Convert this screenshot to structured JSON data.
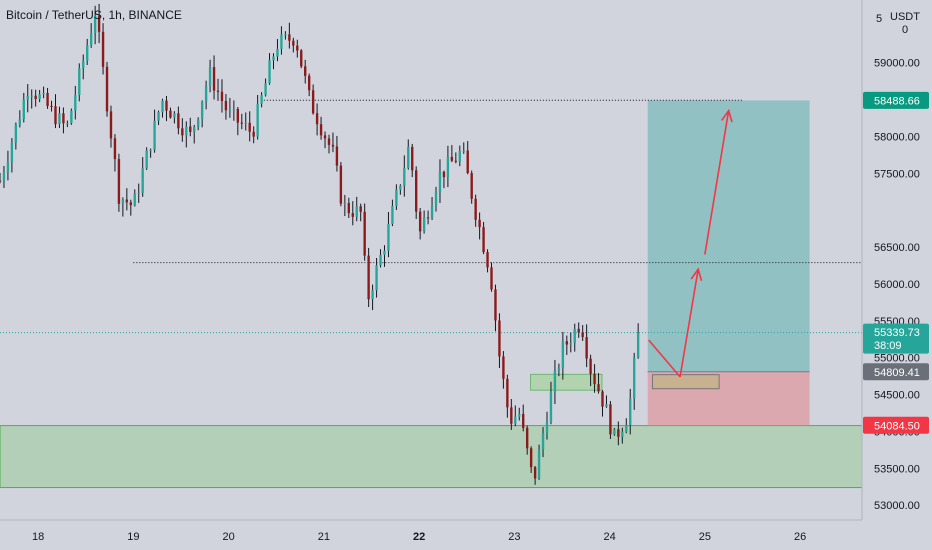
{
  "header": {
    "symbol": "Bitcoin / TetherUS",
    "interval": "1h",
    "exchange": "BINANCE",
    "sep": ", "
  },
  "axis": {
    "currency_label": "USDT",
    "currency_sub": "0",
    "top_partial": "5"
  },
  "colors": {
    "background": "#d1d4dc",
    "up_candle": "#26a69a",
    "down_candle": "#8b1a1a",
    "wick": "#131722",
    "target_zone": "#8ec0c2",
    "stop_zone": "#dba5ad",
    "demand_zone": "#b3cfb8",
    "demand_border": "#4caf50",
    "arrow": "#f23645",
    "current_price_tag": "#26a69a",
    "target_tag": "#089981",
    "entry_tag": "#6b6f78",
    "stop_tag": "#f23645"
  },
  "chart_data": {
    "type": "candlestick",
    "x_ticks": [
      "18",
      "19",
      "20",
      "21",
      "22",
      "23",
      "24",
      "25",
      "26"
    ],
    "y_ticks": [
      53000,
      53500,
      54000,
      54500,
      55000,
      55500,
      56000,
      56500,
      57500,
      58000,
      58500,
      59000
    ],
    "y_tick_labels": [
      "53000.00",
      "53500.00",
      "54000.00",
      "54500.00",
      "55000.00",
      "55500.00",
      "56000.00",
      "56500.00",
      "57500.00",
      "58000.00",
      "58500.00",
      "59000.00"
    ],
    "ylim": [
      52800,
      59850
    ],
    "xlim": [
      17.6,
      26.65
    ],
    "price_tags": [
      {
        "label": "58488.66",
        "value": 58488.66,
        "kind": "target"
      },
      {
        "label": "55339.73",
        "sub": "38:09",
        "value": 55339.73,
        "kind": "current"
      },
      {
        "label": "54809.41",
        "value": 54809.41,
        "kind": "entry"
      },
      {
        "label": "54084.50",
        "value": 54084.5,
        "kind": "stop"
      }
    ],
    "horizontal_levels": [
      {
        "price": 58490,
        "x_start": 20.37,
        "x_end": 25.4
      },
      {
        "price": 56290,
        "x_start": 19.0,
        "x_end": 26.7
      }
    ],
    "current_price": 55339.73,
    "position": {
      "x_start": 24.4,
      "x_end": 26.1,
      "entry": 54809.41,
      "target": 58488.66,
      "stop": 54084.5
    },
    "demand_zone": {
      "x_start": 17.6,
      "x_end": 26.7,
      "top": 54080,
      "bottom": 53240
    },
    "entry_box": {
      "x_start": 23.17,
      "x_end": 23.92,
      "top": 54775,
      "bottom": 54560
    },
    "arrival_box": {
      "x_start": 24.45,
      "x_end": 25.15,
      "top": 54770,
      "bottom": 54580
    },
    "arrows": [
      {
        "from": [
          24.41,
          55240
        ],
        "to": [
          24.74,
          54740
        ],
        "head": false
      },
      {
        "from": [
          24.74,
          54740
        ],
        "to": [
          24.93,
          56200
        ],
        "head": true
      },
      {
        "from": [
          25.0,
          56400
        ],
        "to": [
          25.25,
          58350
        ],
        "head": true
      }
    ],
    "anchors": [
      {
        "x": 17.6,
        "y": 57400
      },
      {
        "x": 17.9,
        "y": 58700
      },
      {
        "x": 18.3,
        "y": 58100
      },
      {
        "x": 18.6,
        "y": 59700
      },
      {
        "x": 18.85,
        "y": 57200
      },
      {
        "x": 19.0,
        "y": 57050
      },
      {
        "x": 19.3,
        "y": 58500
      },
      {
        "x": 19.6,
        "y": 58000
      },
      {
        "x": 19.8,
        "y": 58850
      },
      {
        "x": 20.0,
        "y": 58300
      },
      {
        "x": 20.25,
        "y": 58050
      },
      {
        "x": 20.5,
        "y": 59250
      },
      {
        "x": 20.7,
        "y": 59350
      },
      {
        "x": 20.85,
        "y": 58500
      },
      {
        "x": 21.1,
        "y": 57750
      },
      {
        "x": 21.2,
        "y": 57050
      },
      {
        "x": 21.4,
        "y": 56950
      },
      {
        "x": 21.45,
        "y": 55750
      },
      {
        "x": 21.65,
        "y": 56600
      },
      {
        "x": 21.9,
        "y": 57900
      },
      {
        "x": 22.0,
        "y": 56650
      },
      {
        "x": 22.2,
        "y": 57450
      },
      {
        "x": 22.45,
        "y": 57800
      },
      {
        "x": 22.6,
        "y": 56950
      },
      {
        "x": 22.75,
        "y": 56150
      },
      {
        "x": 22.85,
        "y": 54950
      },
      {
        "x": 22.95,
        "y": 54150
      },
      {
        "x": 23.05,
        "y": 54250
      },
      {
        "x": 23.2,
        "y": 53300
      },
      {
        "x": 23.35,
        "y": 54300
      },
      {
        "x": 23.5,
        "y": 55100
      },
      {
        "x": 23.7,
        "y": 55500
      },
      {
        "x": 23.8,
        "y": 54850
      },
      {
        "x": 23.95,
        "y": 54350
      },
      {
        "x": 24.05,
        "y": 53900
      },
      {
        "x": 24.2,
        "y": 54250
      },
      {
        "x": 24.3,
        "y": 55339
      }
    ],
    "candle_count": 162,
    "candle_x_end": 24.3
  }
}
